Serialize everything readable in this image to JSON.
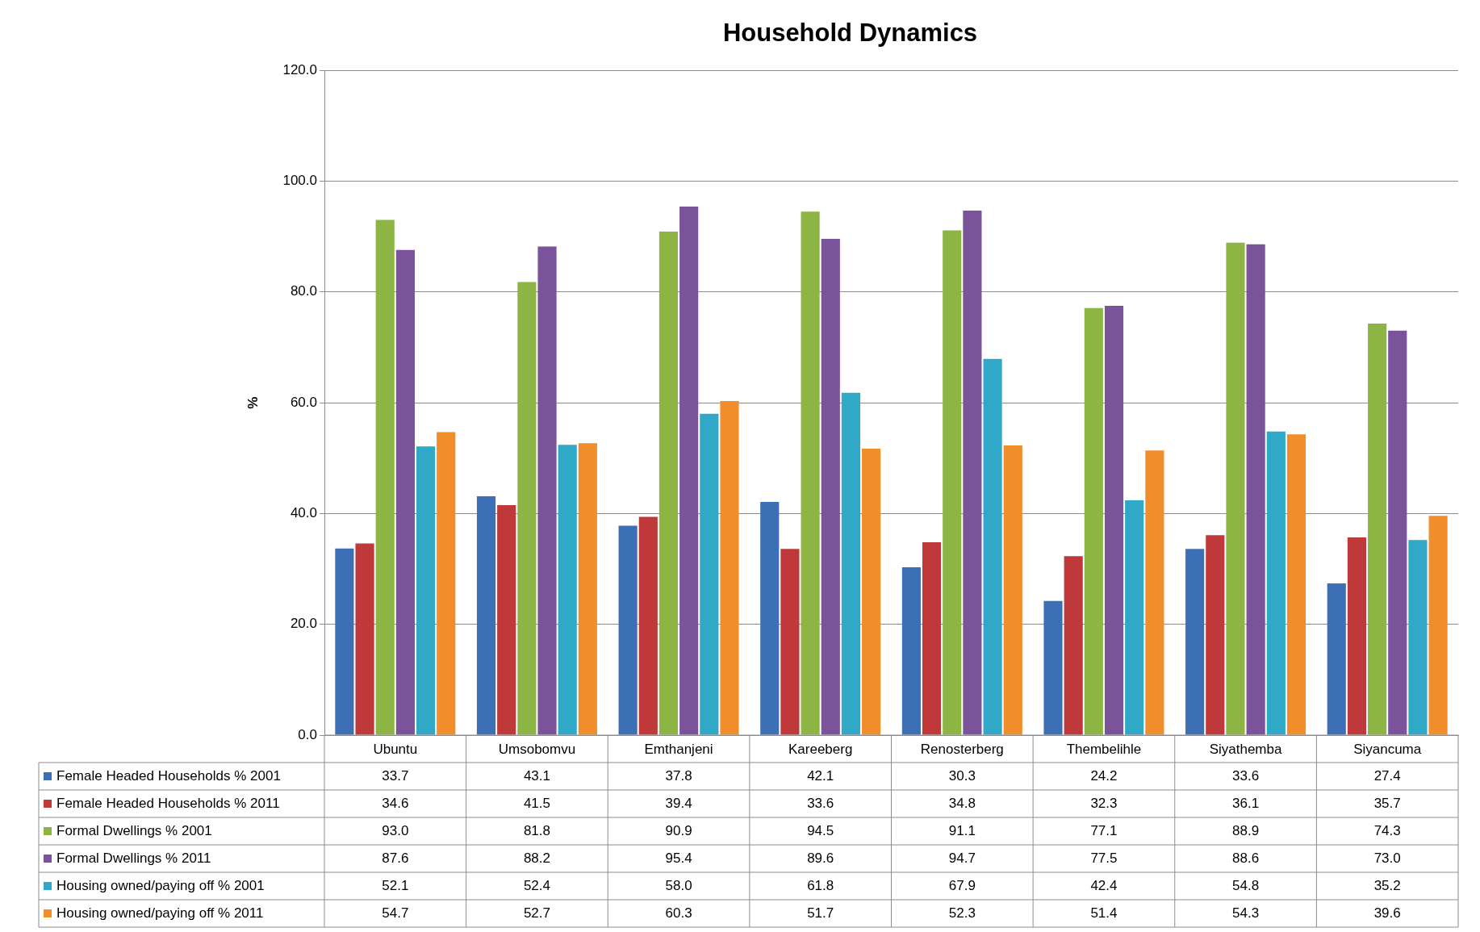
{
  "chart_data": {
    "type": "bar",
    "title": "Household Dynamics",
    "ylabel": "%",
    "categories": [
      "Ubuntu",
      "Umsobomvu",
      "Emthanjeni",
      "Kareeberg",
      "Renosterberg",
      "Thembelihle",
      "Siyathemba",
      "Siyancuma"
    ],
    "series": [
      {
        "name": "Female Headed Households % 2001",
        "color": "#3c6fb5",
        "values": [
          33.7,
          43.1,
          37.8,
          42.1,
          30.3,
          24.2,
          33.6,
          27.4
        ],
        "value_labels": [
          "33.7",
          "43.1",
          "37.8",
          "42.1",
          "30.3",
          "24.2",
          "33.6",
          "27.4"
        ]
      },
      {
        "name": "Female Headed Households % 2011",
        "color": "#c0393a",
        "values": [
          34.6,
          41.5,
          39.4,
          33.6,
          34.8,
          32.3,
          36.1,
          35.7
        ],
        "value_labels": [
          "34.6",
          "41.5",
          "39.4",
          "33.6",
          "34.8",
          "32.3",
          "36.1",
          "35.7"
        ]
      },
      {
        "name": "Formal Dwellings % 2001",
        "color": "#8db543",
        "values": [
          93.0,
          81.8,
          90.9,
          94.5,
          91.1,
          77.1,
          88.9,
          74.3
        ],
        "value_labels": [
          "93.0",
          "81.8",
          "90.9",
          "94.5",
          "91.1",
          "77.1",
          "88.9",
          "74.3"
        ]
      },
      {
        "name": "Formal Dwellings % 2011",
        "color": "#7a539b",
        "values": [
          87.6,
          88.2,
          95.4,
          89.6,
          94.7,
          77.5,
          88.6,
          73.0
        ],
        "value_labels": [
          "87.6",
          "88.2",
          "95.4",
          "89.6",
          "94.7",
          "77.5",
          "88.6",
          "73.0"
        ]
      },
      {
        "name": "Housing owned/paying off % 2001",
        "color": "#2fa9c7",
        "values": [
          52.1,
          52.4,
          58.0,
          61.8,
          67.9,
          42.4,
          54.8,
          35.2
        ],
        "value_labels": [
          "52.1",
          "52.4",
          "58.0",
          "61.8",
          "67.9",
          "42.4",
          "54.8",
          "35.2"
        ]
      },
      {
        "name": "Housing owned/paying off % 2011",
        "color": "#f18d2a",
        "values": [
          54.7,
          52.7,
          60.3,
          51.7,
          52.3,
          51.4,
          54.3,
          39.6
        ],
        "value_labels": [
          "54.7",
          "52.7",
          "60.3",
          "51.7",
          "52.3",
          "51.4",
          "54.3",
          "39.6"
        ]
      }
    ],
    "ylim": [
      0,
      120
    ],
    "yticks": [
      {
        "value": 0,
        "label": "0.0"
      },
      {
        "value": 20,
        "label": "20.0"
      },
      {
        "value": 40,
        "label": "40.0"
      },
      {
        "value": 60,
        "label": "60.0"
      },
      {
        "value": 80,
        "label": "80.0"
      },
      {
        "value": 100,
        "label": "100.0"
      },
      {
        "value": 120,
        "label": "120.0"
      }
    ],
    "grid": "y",
    "legend": "bottom"
  }
}
